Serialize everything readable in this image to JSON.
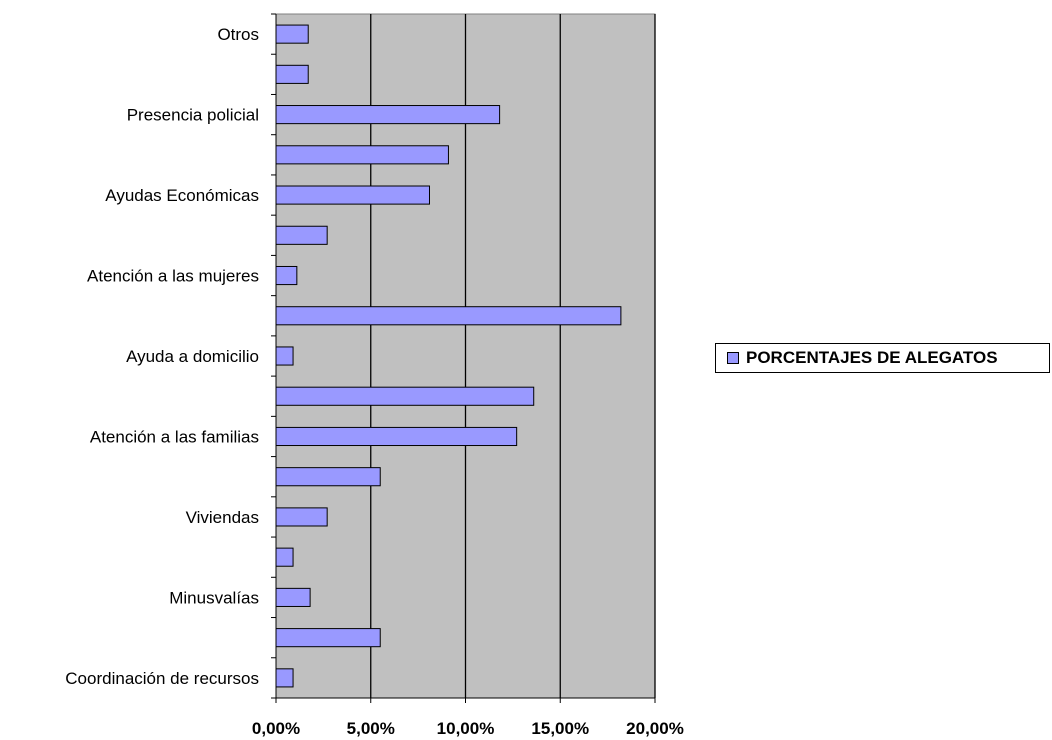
{
  "chart_data": {
    "type": "bar",
    "orientation": "horizontal",
    "categories": [
      "Coordinación de recursos",
      "",
      "Minusvalías",
      "",
      "Viviendas",
      "",
      "Atención a las familias",
      "",
      "Ayuda a domicilio",
      "",
      "Atención a las mujeres",
      "",
      "Ayudas Económicas",
      "",
      "Presencia policial",
      "",
      "Otros"
    ],
    "series": [
      {
        "name": "PORCENTAJES DE ALEGATOS",
        "values": [
          0.9,
          5.5,
          1.8,
          0.9,
          2.7,
          5.5,
          12.7,
          13.6,
          0.9,
          18.2,
          1.1,
          2.7,
          8.1,
          9.1,
          11.8,
          1.7,
          1.7
        ]
      }
    ],
    "x_ticks": [
      "0,00%",
      "5,00%",
      "10,00%",
      "15,00%",
      "20,00%"
    ],
    "xlim": [
      0,
      20
    ],
    "grid": "vertical",
    "legend_position": "right",
    "plot_background": "#c0c0c0",
    "bar_color": "#9999ff",
    "title": "",
    "xlabel": "",
    "ylabel": ""
  }
}
